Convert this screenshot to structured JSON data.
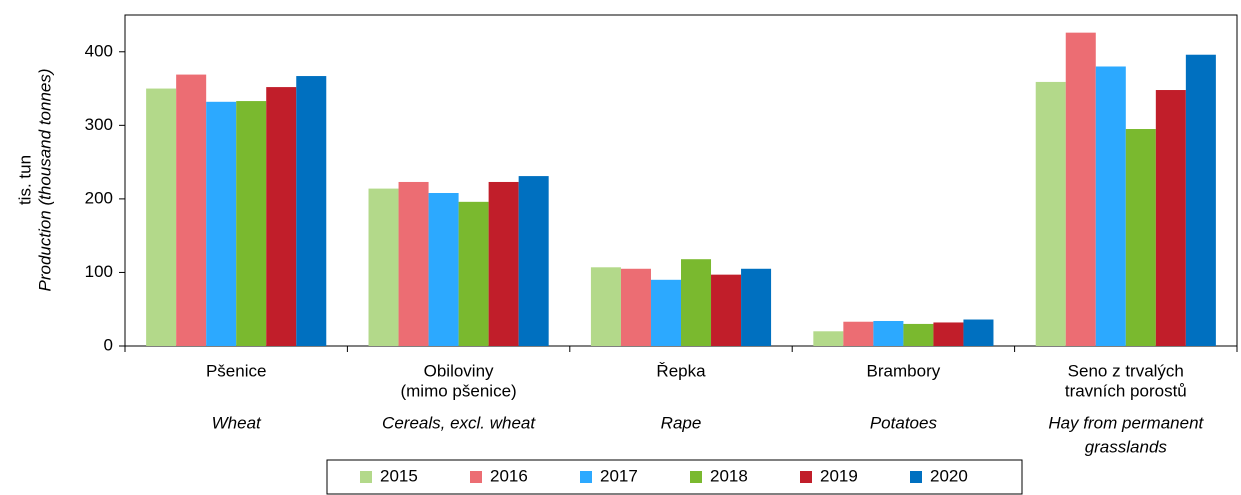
{
  "chart_data": {
    "type": "bar",
    "y_label": [
      "tis. tun",
      "Production (thousand tonnes)"
    ],
    "categories": [
      [
        "Pšenice"
      ],
      [
        "Obiloviny",
        "(mimo pšenice)"
      ],
      [
        "Řepka"
      ],
      [
        "Brambory"
      ],
      [
        "Seno z trvalých",
        "travních porostů"
      ]
    ],
    "categories_en": [
      [
        "Wheat"
      ],
      [
        "Cereals, excl. wheat"
      ],
      [
        "Rape"
      ],
      [
        "Potatoes"
      ],
      [
        "Hay from permanent",
        "grasslands"
      ]
    ],
    "series": [
      {
        "name": "2015",
        "color": "#b3d98a",
        "values": [
          350,
          214,
          107,
          20,
          359
        ]
      },
      {
        "name": "2016",
        "color": "#ec6d73",
        "values": [
          369,
          223,
          105,
          33,
          426
        ]
      },
      {
        "name": "2017",
        "color": "#2ca9ff",
        "values": [
          332,
          208,
          90,
          34,
          380
        ]
      },
      {
        "name": "2018",
        "color": "#7ab92f",
        "values": [
          333,
          196,
          118,
          30,
          295
        ]
      },
      {
        "name": "2019",
        "color": "#c11e2a",
        "values": [
          352,
          223,
          97,
          32,
          348
        ]
      },
      {
        "name": "2020",
        "color": "#0070c0",
        "values": [
          367,
          231,
          105,
          36,
          396
        ]
      }
    ],
    "ylim": [
      0,
      450
    ],
    "yticks": [
      0,
      100,
      200,
      300,
      400
    ],
    "legend": "bottom"
  }
}
